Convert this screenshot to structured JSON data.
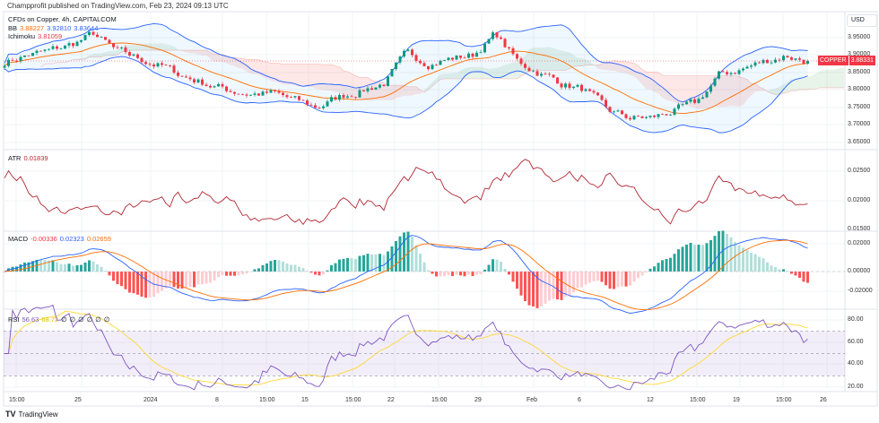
{
  "publisher": "Champprofit published on TradingView.com, Feb 23, 2024 09:13 UTC",
  "symbol_title": "CFDs on Copper, 4h, CAPITALCOM",
  "legend": {
    "bb": {
      "label": "BB",
      "basis": "3.88227",
      "upper": "3.92810",
      "lower": "3.83644"
    },
    "ichimoku": {
      "label": "Ichimoku",
      "value": "3.81059"
    },
    "atr": {
      "label": "ATR",
      "value": "0.01839"
    },
    "macd": {
      "label": "MACD",
      "hist": "-0.00336",
      "macd": "0.02323",
      "signal": "0.02659"
    },
    "rsi": {
      "label": "RSI",
      "value": "56.63",
      "ma": "68.72",
      "extra": [
        "∅",
        "∅",
        "∅",
        "∅",
        "∅",
        "∅"
      ]
    }
  },
  "currency": "USD",
  "price_tag": {
    "symbol": "COPPER",
    "price": "3.88331"
  },
  "price_axis": [
    "3.95000",
    "3.90000",
    "3.85000",
    "3.80000",
    "3.75000",
    "3.70000",
    "3.65000"
  ],
  "atr_axis": [
    "0.02500",
    "0.02000",
    "0.01500"
  ],
  "macd_axis": [
    "0.02000",
    "0.00000",
    "-0.02000"
  ],
  "rsi_axis": [
    "80.00",
    "60.00",
    "40.00",
    "20.00"
  ],
  "time_axis": [
    "15:00",
    "25",
    "2024",
    "8",
    "15:00",
    "15",
    "15:00",
    "22",
    "15:00",
    "29",
    "Feb",
    "6",
    "12",
    "15:00",
    "19",
    "15:00",
    "26"
  ],
  "brand": "TradingView",
  "colors": {
    "up": "#089981",
    "down": "#f23645",
    "bb": "#2962ff",
    "basis": "#ff6d00",
    "atr": "#b22833",
    "macd": "#2962ff",
    "signal": "#ff6d00",
    "rsi": "#7e57c2",
    "rsi_ma": "#fdd835"
  },
  "chart_data": {
    "type": "candlestick",
    "close_anchors": [
      3.88,
      3.9,
      3.91,
      3.93,
      3.96,
      3.91,
      3.89,
      3.87,
      3.84,
      3.82,
      3.8,
      3.79,
      3.79,
      3.77,
      3.75,
      3.78,
      3.8,
      3.82,
      3.9,
      3.88,
      3.89,
      3.9,
      3.96,
      3.88,
      3.85,
      3.82,
      3.8,
      3.74,
      3.72,
      3.72,
      3.74,
      3.76,
      3.84,
      3.86,
      3.88,
      3.9,
      3.88331
    ]
  }
}
